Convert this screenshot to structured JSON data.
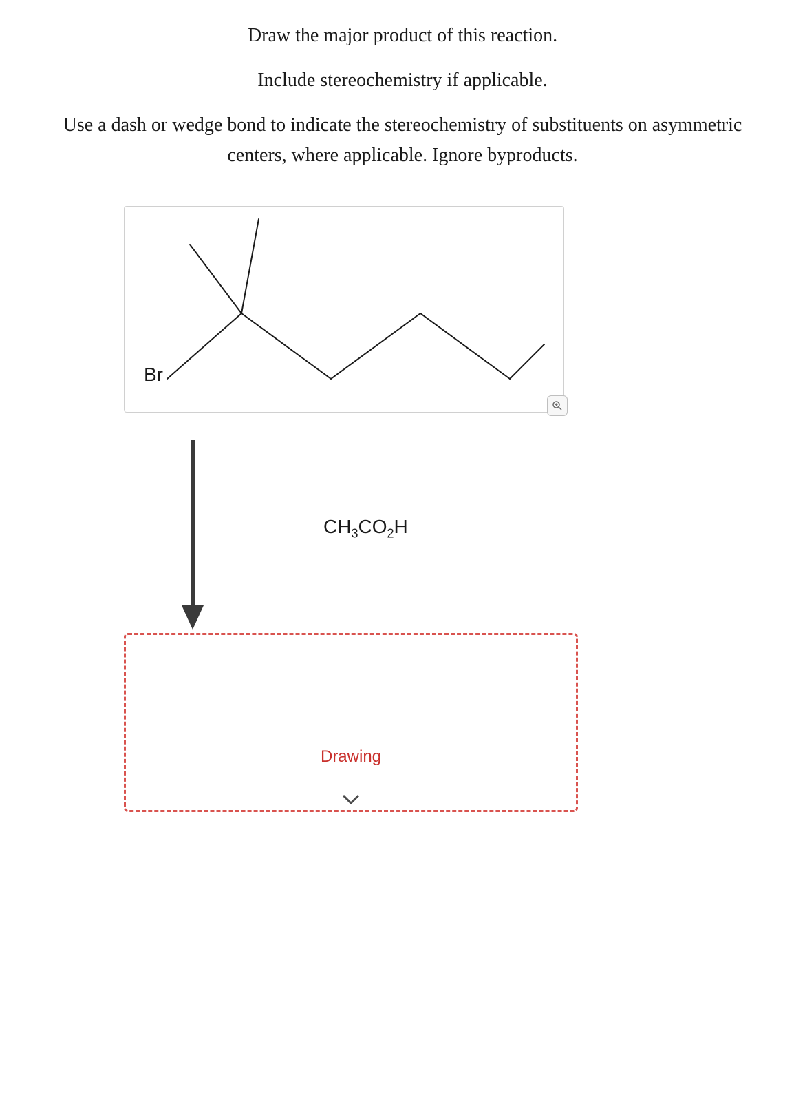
{
  "prompt": {
    "line1": "Draw the major product of this reaction.",
    "line2": "Include stereochemistry if applicable.",
    "line3": "Use a dash or wedge bond to indicate the stereochemistry of substituents on asymmetric centers, where applicable. Ignore byproducts."
  },
  "structure": {
    "atom_label": "Br",
    "bonds": {
      "stroke": "#1a1a1a",
      "stroke_width": 2
    },
    "paths": [
      "M 62 250 L 170 155",
      "M 170 155 L 95 55",
      "M 170 155 L 195 18",
      "M 170 155 L 300 250",
      "M 300 250 L 430 155",
      "M 430 155 L 560 250",
      "M 560 250 L 610 200"
    ]
  },
  "reaction": {
    "reagent_ch3": "CH",
    "reagent_sub1": "3",
    "reagent_co2": "CO",
    "reagent_sub2": "2",
    "reagent_h": "H",
    "arrow_color": "#3a3a3a"
  },
  "drawing": {
    "label": "Drawing",
    "border_color": "#d9534f",
    "label_color": "#c9302c",
    "chevron_color": "#4a4a4a"
  },
  "zoom": {
    "icon_color": "#6a6a6a"
  }
}
